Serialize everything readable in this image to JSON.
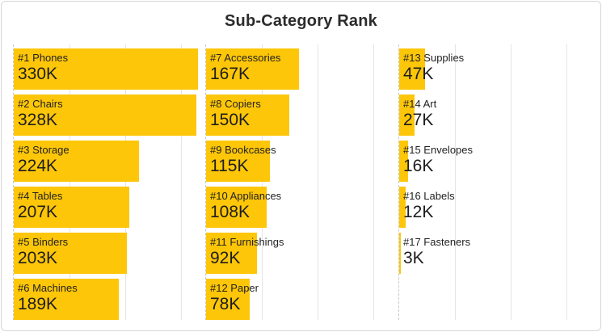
{
  "title": "Sub-Category Rank",
  "colors": {
    "bar": "#FDC608",
    "gridline": "#E5E5E5",
    "zero_axis_dash": "#C9C9C9",
    "title_text": "#2B2B2B",
    "label_text": "#222222",
    "value_text": "#1D1D1D",
    "card_border": "#D6D6D6",
    "background": "#FFFFFF"
  },
  "chart_data": {
    "type": "bar",
    "orientation": "horizontal",
    "title": "Sub-Category Rank",
    "legend": "none",
    "grid": "on",
    "unit": "K (thousands)",
    "axis": {
      "min_k": 0,
      "max_k": 345,
      "gridlines_k": [
        100,
        200,
        300
      ],
      "tick_labels_shown": false
    },
    "layout": {
      "panes": 3,
      "rows_per_pane": 6,
      "rank_order": "left column top-to-bottom, then middle, then right"
    },
    "items": [
      {
        "rank": 1,
        "category": "Phones",
        "label": "#1 Phones",
        "value_k": 330,
        "value_label": "330K"
      },
      {
        "rank": 2,
        "category": "Chairs",
        "label": "#2 Chairs",
        "value_k": 328,
        "value_label": "328K"
      },
      {
        "rank": 3,
        "category": "Storage",
        "label": "#3 Storage",
        "value_k": 224,
        "value_label": "224K"
      },
      {
        "rank": 4,
        "category": "Tables",
        "label": "#4 Tables",
        "value_k": 207,
        "value_label": "207K"
      },
      {
        "rank": 5,
        "category": "Binders",
        "label": "#5 Binders",
        "value_k": 203,
        "value_label": "203K"
      },
      {
        "rank": 6,
        "category": "Machines",
        "label": "#6 Machines",
        "value_k": 189,
        "value_label": "189K"
      },
      {
        "rank": 7,
        "category": "Accessories",
        "label": "#7 Accessories",
        "value_k": 167,
        "value_label": "167K"
      },
      {
        "rank": 8,
        "category": "Copiers",
        "label": "#8 Copiers",
        "value_k": 150,
        "value_label": "150K"
      },
      {
        "rank": 9,
        "category": "Bookcases",
        "label": "#9 Bookcases",
        "value_k": 115,
        "value_label": "115K"
      },
      {
        "rank": 10,
        "category": "Appliances",
        "label": "#10 Appliances",
        "value_k": 108,
        "value_label": "108K"
      },
      {
        "rank": 11,
        "category": "Furnishings",
        "label": "#11 Furnishings",
        "value_k": 92,
        "value_label": "92K"
      },
      {
        "rank": 12,
        "category": "Paper",
        "label": "#12 Paper",
        "value_k": 78,
        "value_label": "78K"
      },
      {
        "rank": 13,
        "category": "Supplies",
        "label": "#13 Supplies",
        "value_k": 47,
        "value_label": "47K"
      },
      {
        "rank": 14,
        "category": "Art",
        "label": "#14 Art",
        "value_k": 27,
        "value_label": "27K"
      },
      {
        "rank": 15,
        "category": "Envelopes",
        "label": "#15 Envelopes",
        "value_k": 16,
        "value_label": "16K"
      },
      {
        "rank": 16,
        "category": "Labels",
        "label": "#16 Labels",
        "value_k": 12,
        "value_label": "12K"
      },
      {
        "rank": 17,
        "category": "Fasteners",
        "label": "#17 Fasteners",
        "value_k": 3,
        "value_label": "3K"
      }
    ]
  }
}
